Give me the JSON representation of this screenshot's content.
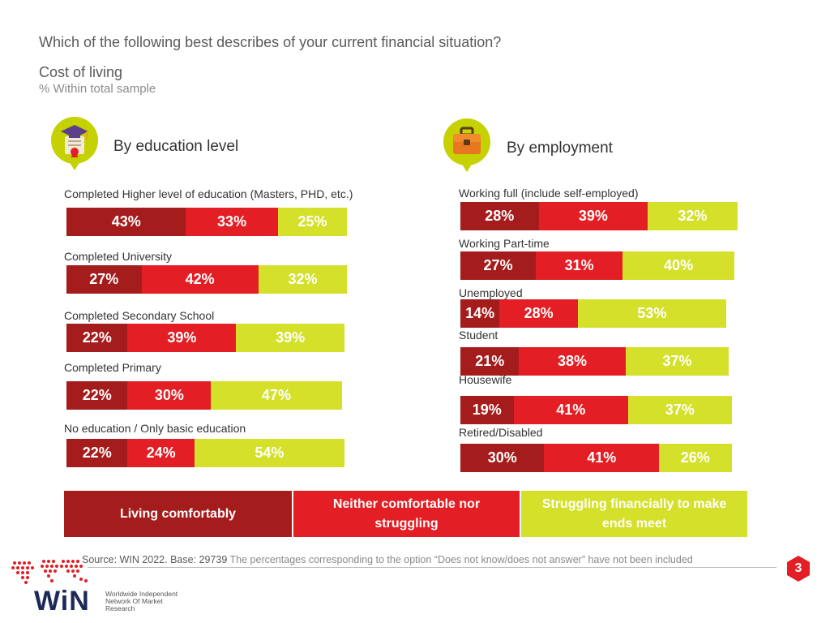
{
  "header": {
    "question": "Which of the following best describes of your current financial situation?",
    "subtitle": "Cost of living",
    "note": "% Within total sample"
  },
  "sections": {
    "education_title": "By education level",
    "employment_title": "By employment"
  },
  "colors": {
    "comfortable": "#a51c1c",
    "neither": "#e31e24",
    "struggling": "#d4e02a",
    "accent": "#c5d100"
  },
  "legend": {
    "comfortable": "Living comfortably",
    "neither": "Neither comfortable nor struggling",
    "struggling": "Struggling financially to make ends meet"
  },
  "chart_data": [
    {
      "type": "bar",
      "stacked": true,
      "orientation": "horizontal",
      "title": "By education level",
      "categories": [
        "Completed Higher level of education (Masters, PHD, etc.)",
        "Completed University",
        "Completed Secondary School",
        "Completed Primary",
        "No education / Only basic education"
      ],
      "series": [
        {
          "name": "Living comfortably",
          "values": [
            43,
            27,
            22,
            22,
            22
          ],
          "labels": [
            "43%",
            "27%",
            "22%",
            "22%",
            "22%"
          ]
        },
        {
          "name": "Neither comfortable nor struggling",
          "values": [
            33,
            42,
            39,
            30,
            24
          ],
          "labels": [
            "33%",
            "42%",
            "39%",
            "30%",
            "24%"
          ]
        },
        {
          "name": "Struggling financially to make ends meet",
          "values": [
            25,
            32,
            39,
            47,
            54
          ],
          "labels": [
            "25%",
            "32%",
            "39%",
            "47%",
            "54%"
          ]
        }
      ]
    },
    {
      "type": "bar",
      "stacked": true,
      "orientation": "horizontal",
      "title": "By employment",
      "categories": [
        "Working full (include self-employed)",
        "Working Part-time",
        "Unemployed",
        "Student",
        "Housewife",
        "Retired/Disabled"
      ],
      "series": [
        {
          "name": "Living comfortably",
          "values": [
            28,
            27,
            14,
            21,
            19,
            30
          ],
          "labels": [
            "28%",
            "27%",
            "14%",
            "21%",
            "19%",
            "30%"
          ]
        },
        {
          "name": "Neither comfortable nor struggling",
          "values": [
            39,
            31,
            28,
            38,
            41,
            41
          ],
          "labels": [
            "39%",
            "31%",
            "28%",
            "38%",
            "41%",
            "41%"
          ]
        },
        {
          "name": "Struggling financially to make ends meet",
          "values": [
            32,
            40,
            53,
            37,
            37,
            26
          ],
          "labels": [
            "32%",
            "40%",
            "53%",
            "37%",
            "37%",
            "26%"
          ]
        }
      ]
    }
  ],
  "footer": {
    "source": "Source: WIN 2022. Base: 29739",
    "source_note": "The percentages corresponding to the option “Does not know/does not answer” have not been included",
    "page_number": "3",
    "logo_word": "WiN",
    "logo_tagline": "Worldwide Independent Network Of Market Research"
  }
}
